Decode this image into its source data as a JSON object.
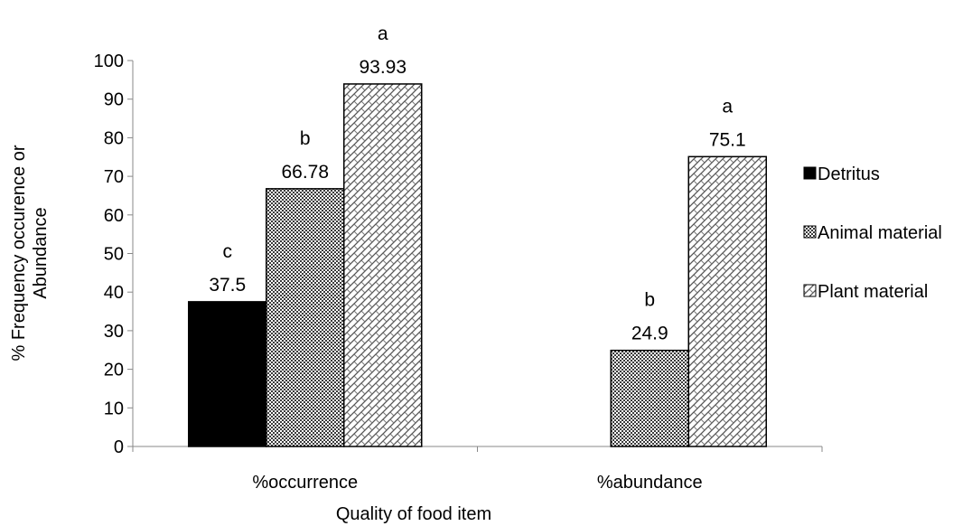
{
  "chart_data": {
    "type": "bar",
    "title": "",
    "xlabel": "Quality  of food item",
    "ylabel_lines": [
      "% Frequency occurence or",
      "Abundance"
    ],
    "categories": [
      "%occurrence",
      "%abundance"
    ],
    "ylim": [
      0,
      100
    ],
    "yticks": [
      0,
      10,
      20,
      30,
      40,
      50,
      60,
      70,
      80,
      90,
      100
    ],
    "grid": false,
    "legend_position": "right",
    "series": [
      {
        "name": "Detritus",
        "pattern": "solid",
        "color": "#000000",
        "values": [
          37.5,
          null
        ],
        "value_labels": [
          "37.5",
          null
        ],
        "letters": [
          "c",
          null
        ]
      },
      {
        "name": "Animal material",
        "pattern": "checker",
        "color": "#555555",
        "values": [
          66.78,
          24.9
        ],
        "value_labels": [
          "66.78",
          "24.9"
        ],
        "letters": [
          "b",
          "b"
        ]
      },
      {
        "name": "Plant material",
        "pattern": "weave",
        "color": "#888888",
        "values": [
          93.93,
          75.1
        ],
        "value_labels": [
          "93.93",
          "75.1"
        ],
        "letters": [
          "a",
          "a"
        ]
      }
    ]
  }
}
